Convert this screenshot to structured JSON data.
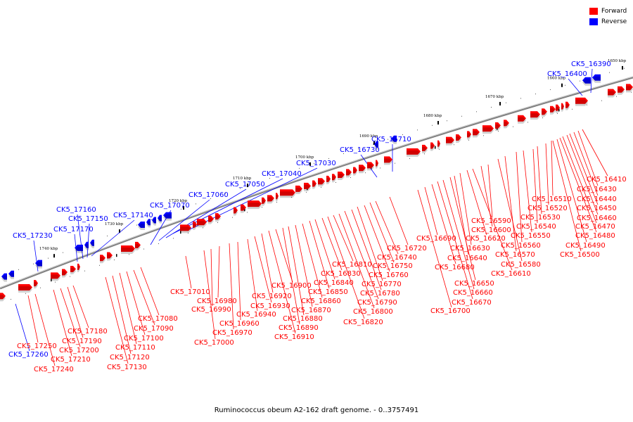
{
  "legend": [
    {
      "label": "Forward",
      "color": "#ff0000"
    },
    {
      "label": "Reverse",
      "color": "#0000ff"
    }
  ],
  "caption": "Ruminococcus obeum A2-162 draft genome. - 0..3757491",
  "colors": {
    "forward": "#ff0000",
    "reverse": "#0000ff",
    "backbone": "#808080"
  },
  "chart_data": {
    "type": "genome-map",
    "axis_unit": "kbp",
    "ticks": [
      {
        "kbp": 1650,
        "label": "1650 kbp"
      },
      {
        "kbp": 1660,
        "label": "1660 kbp"
      },
      {
        "kbp": 1670,
        "label": "1670 kbp"
      },
      {
        "kbp": 1680,
        "label": "1680 kbp"
      },
      {
        "kbp": 1690,
        "label": "1690 kbp"
      },
      {
        "kbp": 1700,
        "label": "1700 kbp"
      },
      {
        "kbp": 1710,
        "label": "1710 kbp"
      },
      {
        "kbp": 1720,
        "label": "1720 kbp"
      },
      {
        "kbp": 1730,
        "label": "1730 kbp"
      },
      {
        "kbp": 1740,
        "label": "1740 kbp"
      }
    ],
    "reverse_genes": [
      "CK5_16390",
      "CK5_16400",
      "CK5_16710",
      "CK5_16730",
      "CK5_17030",
      "CK5_17040",
      "CK5_17050",
      "CK5_17060",
      "CK5_17070",
      "CK5_17140",
      "CK5_17150",
      "CK5_17160",
      "CK5_17170",
      "CK5_17230",
      "CK5_17260"
    ],
    "forward_genes": [
      "CK5_16410",
      "CK5_16430",
      "CK5_16440",
      "CK5_16450",
      "CK5_16460",
      "CK5_16470",
      "CK5_16480",
      "CK5_16490",
      "CK5_16500",
      "CK5_16510",
      "CK5_16520",
      "CK5_16530",
      "CK5_16540",
      "CK5_16550",
      "CK5_16560",
      "CK5_16570",
      "CK5_16580",
      "CK5_16590",
      "CK5_16600",
      "CK5_16610",
      "CK5_16620",
      "CK5_16630",
      "CK5_16640",
      "CK5_16650",
      "CK5_16660",
      "CK5_16670",
      "CK5_16680",
      "CK5_16690",
      "CK5_16700",
      "CK5_16720",
      "CK5_16740",
      "CK5_16750",
      "CK5_16760",
      "CK5_16770",
      "CK5_16780",
      "CK5_16790",
      "CK5_16800",
      "CK5_16810",
      "CK5_16820",
      "CK5_16830",
      "CK5_16840",
      "CK5_16850",
      "CK5_16860",
      "CK5_16870",
      "CK5_16880",
      "CK5_16890",
      "CK5_16900",
      "CK5_16910",
      "CK5_16920",
      "CK5_16930",
      "CK5_16940",
      "CK5_16960",
      "CK5_16970",
      "CK5_16980",
      "CK5_16990",
      "CK5_17000",
      "CK5_17010",
      "CK5_17080",
      "CK5_17090",
      "CK5_17100",
      "CK5_17110",
      "CK5_17120",
      "CK5_17130",
      "CK5_17180",
      "CK5_17190",
      "CK5_17200",
      "CK5_17210",
      "CK5_17240",
      "CK5_17250"
    ]
  }
}
